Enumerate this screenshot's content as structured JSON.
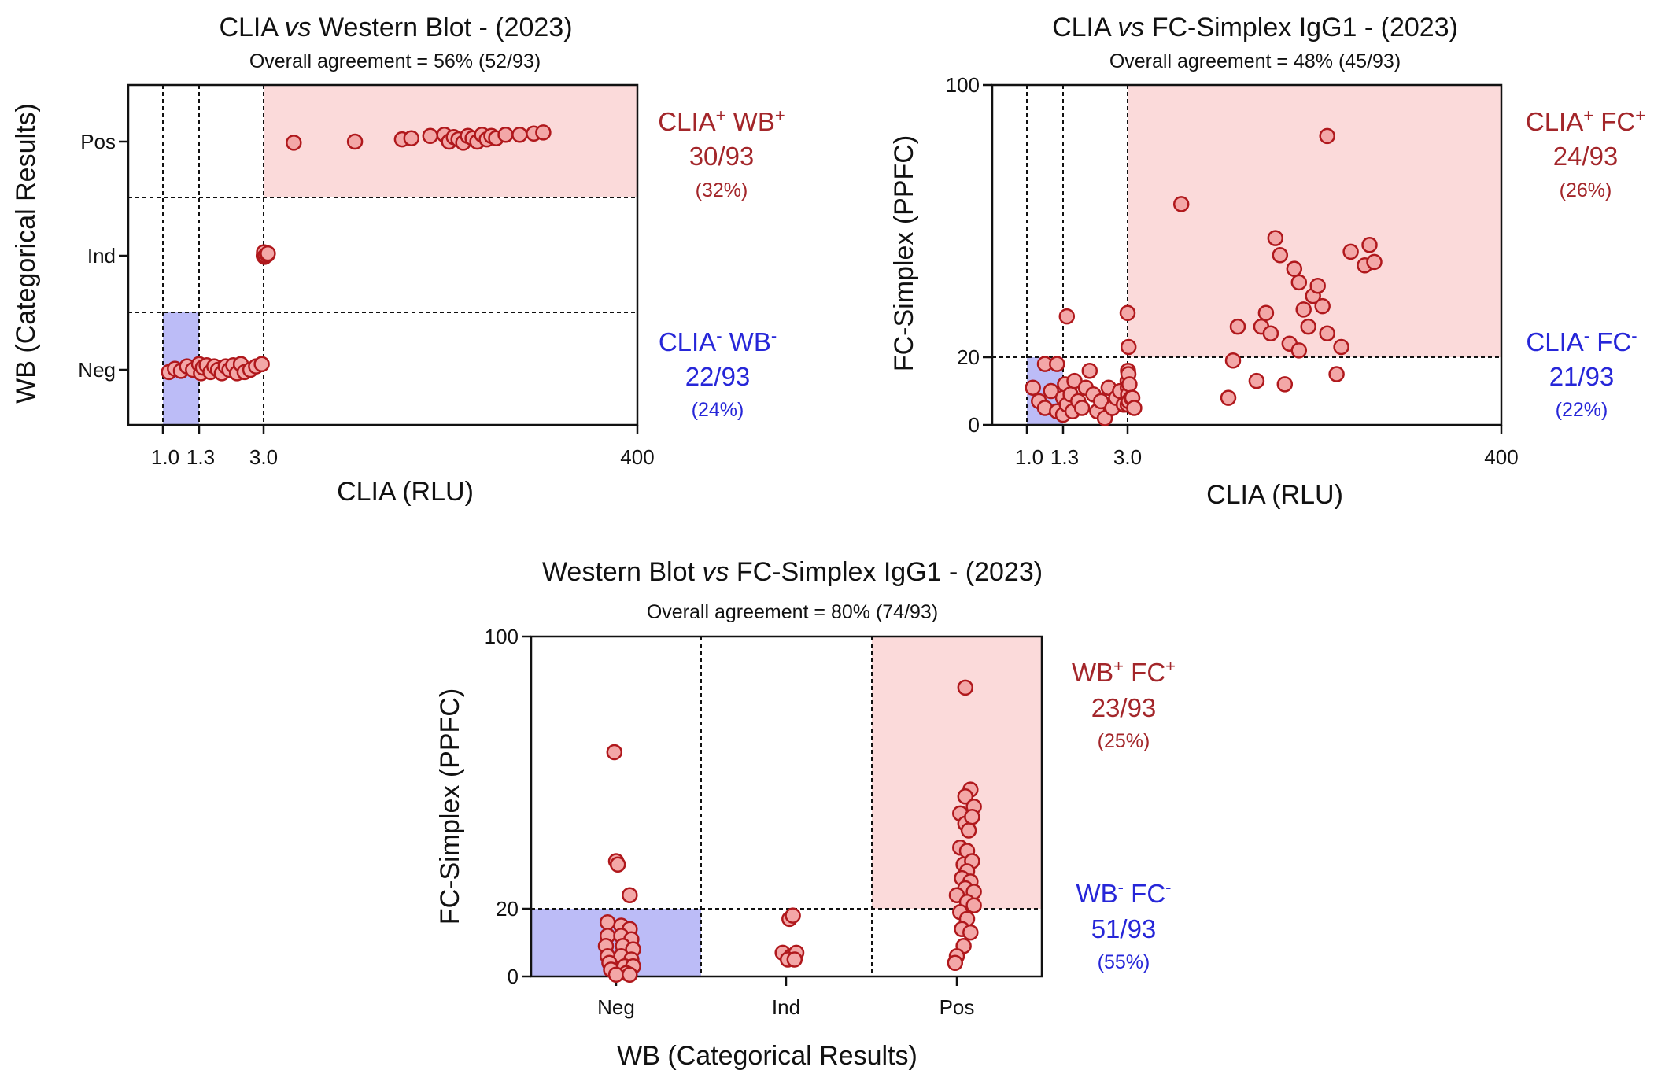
{
  "colors": {
    "marker_fill": "#f3a7a7",
    "marker_stroke": "#b0181c",
    "pos_region": "#fbdada",
    "neg_region": "#bcbcf7",
    "pos_text": "#a3262a",
    "neg_text": "#2626d8"
  },
  "chart_data": [
    {
      "type": "scatter",
      "title_pre": "CLIA ",
      "title_vs": "vs",
      "title_post": " Western Blot - (2023)",
      "subtitle": "Overall agreement = 56% (52/93)",
      "xlabel": "CLIA (RLU)",
      "ylabel": "WB (Categorical Results)",
      "x_ticks": [
        "1.0",
        "1.3",
        "3.0",
        "400"
      ],
      "y_categories": [
        "Neg",
        "Ind",
        "Pos"
      ],
      "cutoffs": {
        "x": [
          1.0,
          1.3,
          3.0
        ]
      },
      "quadrants": {
        "pos": {
          "label": "CLIA",
          "label_sup": "+",
          "label2": " WB",
          "label2_sup": "+",
          "fraction": "30/93",
          "percent": "(32%)"
        },
        "neg": {
          "label": "CLIA",
          "label_sup": "-",
          "label2": " WB",
          "label2_sup": "-",
          "fraction": "22/93",
          "percent": "(24%)"
        }
      },
      "points": [
        [
          1.05,
          "Neg",
          -0.02
        ],
        [
          1.1,
          "Neg",
          0.01
        ],
        [
          1.15,
          "Neg",
          -0.01
        ],
        [
          1.2,
          "Neg",
          0.03
        ],
        [
          1.25,
          "Neg",
          0.0
        ],
        [
          1.3,
          "Neg",
          0.05
        ],
        [
          1.35,
          "Neg",
          -0.03
        ],
        [
          1.4,
          "Neg",
          0.02
        ],
        [
          1.5,
          "Neg",
          0.04
        ],
        [
          1.6,
          "Neg",
          -0.02
        ],
        [
          1.7,
          "Neg",
          0.03
        ],
        [
          1.8,
          "Neg",
          0.0
        ],
        [
          1.9,
          "Neg",
          -0.03
        ],
        [
          2.0,
          "Neg",
          0.03
        ],
        [
          2.1,
          "Neg",
          0.0
        ],
        [
          2.2,
          "Neg",
          0.04
        ],
        [
          2.3,
          "Neg",
          -0.03
        ],
        [
          2.4,
          "Neg",
          0.05
        ],
        [
          2.5,
          "Neg",
          -0.02
        ],
        [
          2.65,
          "Neg",
          0.0
        ],
        [
          2.8,
          "Neg",
          0.03
        ],
        [
          2.95,
          "Neg",
          0.05
        ],
        [
          3.2,
          "Ind",
          0.0
        ],
        [
          3.4,
          "Ind",
          0.03
        ],
        [
          4.0,
          "Ind",
          -0.01
        ],
        [
          5.0,
          "Ind",
          0.0
        ],
        [
          7.0,
          "Ind",
          0.01
        ],
        [
          7.5,
          "Ind",
          0.02
        ],
        [
          35,
          "Pos",
          -0.01
        ],
        [
          100,
          "Pos",
          0.0
        ],
        [
          150,
          "Pos",
          0.02
        ],
        [
          160,
          "Pos",
          0.03
        ],
        [
          180,
          "Pos",
          0.05
        ],
        [
          195,
          "Pos",
          0.06
        ],
        [
          200,
          "Pos",
          0.0
        ],
        [
          205,
          "Pos",
          0.04
        ],
        [
          210,
          "Pos",
          0.02
        ],
        [
          215,
          "Pos",
          -0.01
        ],
        [
          220,
          "Pos",
          0.05
        ],
        [
          225,
          "Pos",
          0.03
        ],
        [
          230,
          "Pos",
          0.0
        ],
        [
          235,
          "Pos",
          0.06
        ],
        [
          240,
          "Pos",
          0.02
        ],
        [
          245,
          "Pos",
          0.05
        ],
        [
          250,
          "Pos",
          0.03
        ],
        [
          260,
          "Pos",
          0.06
        ],
        [
          275,
          "Pos",
          0.06
        ],
        [
          290,
          "Pos",
          0.07
        ],
        [
          300,
          "Pos",
          0.08
        ]
      ]
    },
    {
      "type": "scatter",
      "title_pre": "CLIA ",
      "title_vs": "vs",
      "title_post": " FC-Simplex IgG1 - (2023)",
      "subtitle": "Overall agreement = 48% (45/93)",
      "xlabel": "CLIA (RLU)",
      "ylabel": "FC-Simplex (PPFC)",
      "x_ticks": [
        "1.0",
        "1.3",
        "3.0",
        "400"
      ],
      "y_ticks": [
        "0",
        "20",
        "100"
      ],
      "cutoffs": {
        "x": [
          1.0,
          1.3,
          3.0
        ],
        "y": 20
      },
      "quadrants": {
        "pos": {
          "label": "CLIA",
          "label_sup": "+",
          "label2": " FC",
          "label2_sup": "+",
          "fraction": "24/93",
          "percent": "(26%)"
        },
        "neg": {
          "label": "CLIA",
          "label_sup": "-",
          "label2": " FC",
          "label2_sup": "-",
          "fraction": "21/93",
          "percent": "(22%)"
        }
      },
      "points": [
        [
          1.05,
          11
        ],
        [
          1.1,
          7
        ],
        [
          1.15,
          5
        ],
        [
          1.15,
          18
        ],
        [
          1.2,
          10
        ],
        [
          1.25,
          4
        ],
        [
          1.25,
          18
        ],
        [
          1.3,
          8
        ],
        [
          1.3,
          3
        ],
        [
          1.35,
          12
        ],
        [
          1.4,
          6
        ],
        [
          1.4,
          32
        ],
        [
          1.5,
          9
        ],
        [
          1.55,
          4
        ],
        [
          1.6,
          13
        ],
        [
          1.7,
          7
        ],
        [
          1.8,
          5
        ],
        [
          1.9,
          11
        ],
        [
          2.0,
          16
        ],
        [
          2.1,
          9
        ],
        [
          2.2,
          4
        ],
        [
          2.3,
          7
        ],
        [
          2.4,
          2
        ],
        [
          2.5,
          11
        ],
        [
          2.6,
          5
        ],
        [
          2.7,
          8
        ],
        [
          2.8,
          10
        ],
        [
          2.9,
          6
        ],
        [
          3.0,
          13
        ],
        [
          3.0,
          33
        ],
        [
          3.1,
          6
        ],
        [
          3.2,
          11
        ],
        [
          3.4,
          16
        ],
        [
          3.5,
          9
        ],
        [
          3.8,
          15
        ],
        [
          4.0,
          23
        ],
        [
          4.2,
          7
        ],
        [
          5.0,
          12
        ],
        [
          7.0,
          8
        ],
        [
          8.0,
          8
        ],
        [
          10.0,
          5
        ],
        [
          60,
          65
        ],
        [
          110,
          8
        ],
        [
          115,
          19
        ],
        [
          120,
          29
        ],
        [
          140,
          13
        ],
        [
          145,
          29
        ],
        [
          150,
          33
        ],
        [
          155,
          27
        ],
        [
          160,
          55
        ],
        [
          165,
          50
        ],
        [
          170,
          12
        ],
        [
          175,
          24
        ],
        [
          180,
          46
        ],
        [
          185,
          42
        ],
        [
          185,
          22
        ],
        [
          190,
          34
        ],
        [
          195,
          29
        ],
        [
          200,
          38
        ],
        [
          205,
          41
        ],
        [
          210,
          35
        ],
        [
          215,
          27
        ],
        [
          215,
          85
        ],
        [
          225,
          15
        ],
        [
          230,
          23
        ],
        [
          240,
          51
        ],
        [
          255,
          47
        ],
        [
          260,
          53
        ],
        [
          265,
          48
        ]
      ]
    },
    {
      "type": "scatter",
      "title_pre": "Western Blot ",
      "title_vs": "vs",
      "title_post": " FC-Simplex IgG1 - (2023)",
      "subtitle": "Overall agreement = 80% (74/93)",
      "xlabel": "WB (Categorical Results)",
      "ylabel": "FC-Simplex (PPFC)",
      "x_categories": [
        "Neg",
        "Ind",
        "Pos"
      ],
      "y_ticks": [
        "0",
        "20",
        "100"
      ],
      "cutoffs": {
        "y": 20
      },
      "quadrants": {
        "pos": {
          "label": "WB",
          "label_sup": "+",
          "label2": " FC",
          "label2_sup": "+",
          "fraction": "23/93",
          "percent": "(25%)"
        },
        "neg": {
          "label": "WB",
          "label_sup": "-",
          "label2": " FC",
          "label2_sup": "-",
          "fraction": "51/93",
          "percent": "(55%)"
        }
      },
      "points": [
        [
          "Neg",
          -0.01,
          66
        ],
        [
          "Neg",
          0.0,
          34
        ],
        [
          "Neg",
          0.01,
          33
        ],
        [
          "Neg",
          0.08,
          24
        ],
        [
          "Neg",
          -0.05,
          16
        ],
        [
          "Neg",
          0.03,
          15
        ],
        [
          "Neg",
          0.08,
          14
        ],
        [
          "Neg",
          -0.05,
          12
        ],
        [
          "Neg",
          0.03,
          12
        ],
        [
          "Neg",
          0.09,
          11
        ],
        [
          "Neg",
          -0.06,
          9
        ],
        [
          "Neg",
          0.04,
          9
        ],
        [
          "Neg",
          0.1,
          8
        ],
        [
          "Neg",
          -0.05,
          6
        ],
        [
          "Neg",
          0.03,
          6
        ],
        [
          "Neg",
          0.09,
          5
        ],
        [
          "Neg",
          -0.04,
          4
        ],
        [
          "Neg",
          0.05,
          3
        ],
        [
          "Neg",
          0.1,
          3
        ],
        [
          "Neg",
          -0.03,
          2
        ],
        [
          "Neg",
          0.06,
          1
        ],
        [
          "Neg",
          0.0,
          0.5
        ],
        [
          "Neg",
          0.08,
          0.5
        ],
        [
          "Ind",
          0.02,
          17
        ],
        [
          "Ind",
          0.04,
          18
        ],
        [
          "Ind",
          -0.02,
          7
        ],
        [
          "Ind",
          0.03,
          6
        ],
        [
          "Ind",
          0.06,
          7
        ],
        [
          "Ind",
          0.01,
          5
        ],
        [
          "Ind",
          0.05,
          5
        ],
        [
          "Pos",
          0.05,
          85
        ],
        [
          "Pos",
          0.08,
          55
        ],
        [
          "Pos",
          0.05,
          53
        ],
        [
          "Pos",
          0.1,
          50
        ],
        [
          "Pos",
          0.02,
          48
        ],
        [
          "Pos",
          0.05,
          45
        ],
        [
          "Pos",
          0.09,
          47
        ],
        [
          "Pos",
          0.07,
          43
        ],
        [
          "Pos",
          0.02,
          38
        ],
        [
          "Pos",
          0.06,
          37
        ],
        [
          "Pos",
          0.04,
          33
        ],
        [
          "Pos",
          0.09,
          34
        ],
        [
          "Pos",
          0.06,
          31
        ],
        [
          "Pos",
          0.03,
          29
        ],
        [
          "Pos",
          0.08,
          28
        ],
        [
          "Pos",
          0.05,
          26
        ],
        [
          "Pos",
          0.1,
          25
        ],
        [
          "Pos",
          0.0,
          24
        ],
        [
          "Pos",
          0.06,
          22
        ],
        [
          "Pos",
          0.1,
          21
        ],
        [
          "Pos",
          0.02,
          19
        ],
        [
          "Pos",
          0.06,
          17
        ],
        [
          "Pos",
          0.03,
          14
        ],
        [
          "Pos",
          0.08,
          13
        ],
        [
          "Pos",
          0.04,
          9
        ],
        [
          "Pos",
          0.0,
          6
        ],
        [
          "Pos",
          -0.01,
          4
        ]
      ]
    }
  ]
}
